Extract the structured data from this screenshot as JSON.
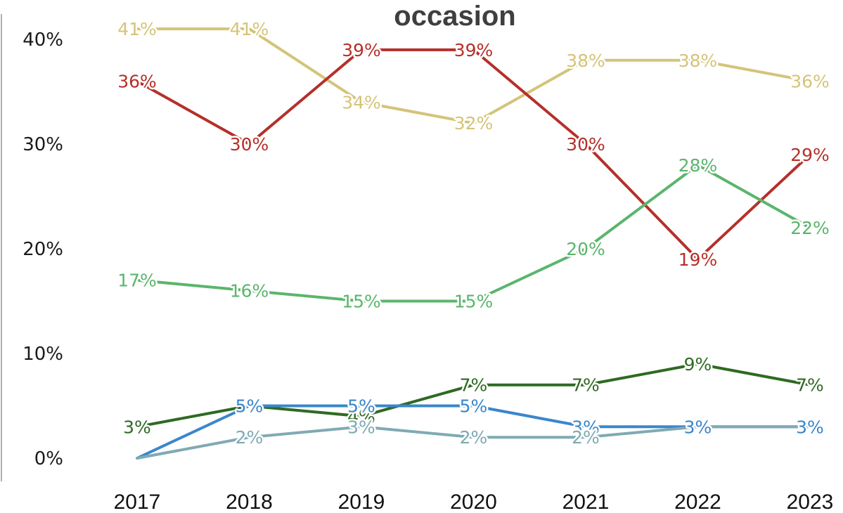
{
  "chart_data": {
    "type": "line",
    "title": "occasion",
    "x": [
      "2017",
      "2018",
      "2019",
      "2020",
      "2021",
      "2022",
      "2023"
    ],
    "ylim": [
      0,
      40
    ],
    "yticks": [
      0,
      10,
      20,
      30,
      40
    ],
    "ytick_labels": [
      "0%",
      "10%",
      "20%",
      "30%",
      "40%"
    ],
    "grid": false,
    "legend": "none",
    "series": [
      {
        "color": "#d4c479",
        "values": [
          41,
          41,
          34,
          32,
          38,
          38,
          36
        ],
        "labels": [
          "41%",
          "41%",
          "34%",
          "32%",
          "38%",
          "38%",
          "36%"
        ]
      },
      {
        "color": "#b5302a",
        "values": [
          36,
          30,
          39,
          39,
          30,
          19,
          29
        ],
        "labels": [
          "36%",
          "30%",
          "39%",
          "39%",
          "30%",
          "19%",
          "29%"
        ]
      },
      {
        "color": "#5bb56c",
        "values": [
          17,
          16,
          15,
          15,
          20,
          28,
          22
        ],
        "labels": [
          "17%",
          "16%",
          "15%",
          "15%",
          "20%",
          "28%",
          "22%"
        ]
      },
      {
        "color": "#2e6a22",
        "values": [
          3,
          5,
          4,
          7,
          7,
          9,
          7
        ],
        "labels": [
          "3%",
          "",
          "4%",
          "7%",
          "7%",
          "9%",
          "7%"
        ]
      },
      {
        "color": "#3a86cc",
        "values": [
          0,
          5,
          5,
          5,
          3,
          3,
          3
        ],
        "labels": [
          "",
          "5%",
          "5%",
          "5%",
          "3%",
          "3%",
          "3%"
        ]
      },
      {
        "color": "#7faab3",
        "values": [
          0,
          2,
          3,
          2,
          2,
          3,
          3
        ],
        "labels": [
          "",
          "2%",
          "3%",
          "2%",
          "2%",
          "",
          ""
        ]
      }
    ]
  }
}
